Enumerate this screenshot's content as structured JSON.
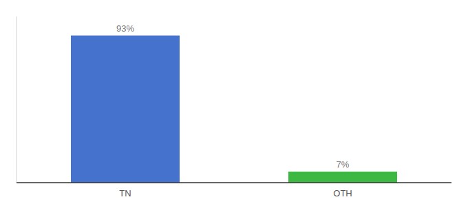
{
  "chart_data": {
    "type": "bar",
    "categories": [
      "TN",
      "OTH"
    ],
    "values": [
      93,
      7
    ],
    "value_labels": [
      "93%",
      "7%"
    ],
    "colors": [
      "#4472cc",
      "#3cb843"
    ],
    "ylim": [
      0,
      105
    ],
    "data_labels": true,
    "tick_labels": "x",
    "grid": false
  }
}
